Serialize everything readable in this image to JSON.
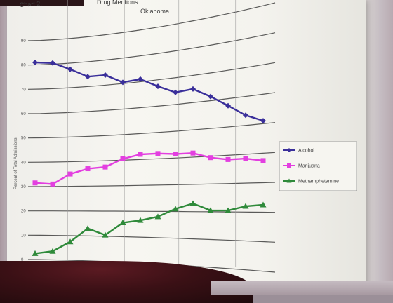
{
  "header": {
    "chart_label": "Chart 2:",
    "title_line1": "Drug Mentions",
    "title_line2": "Oklahoma"
  },
  "chart_data": {
    "type": "line",
    "ylabel": "Percent of Total Admissions",
    "ylim": [
      0,
      90
    ],
    "yticks": [
      0,
      10,
      20,
      30,
      40,
      50,
      60,
      70,
      80,
      90
    ],
    "series": [
      {
        "name": "Alcohol",
        "color": "#3a2f9a",
        "marker": "diamond",
        "values": [
          81,
          80.5,
          77.5,
          74,
          74,
          70.5,
          71,
          67.5,
          64.5,
          65,
          61.5,
          57.5,
          53.5,
          51
        ]
      },
      {
        "name": "Marijuana",
        "color": "#e33fe0",
        "marker": "square",
        "values": [
          31.5,
          31,
          35,
          37,
          37.5,
          40.5,
          42,
          42,
          41.5,
          41.5,
          39.5,
          38.5,
          38.5,
          37.5
        ]
      },
      {
        "name": "Methamphetamine",
        "color": "#2f8a3a",
        "marker": "triangle",
        "values": [
          2.5,
          3.5,
          7.5,
          13,
          10.5,
          15.5,
          16.5,
          18,
          21,
          23,
          20.5,
          20.5,
          22,
          22.5
        ]
      }
    ],
    "legend": "right",
    "grid": true
  }
}
